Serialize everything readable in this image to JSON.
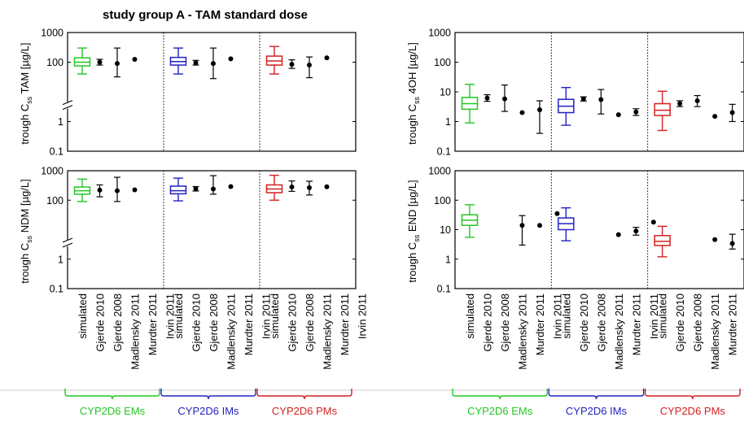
{
  "title": "study group A - TAM standard dose",
  "colors": {
    "EMs": "#22c722",
    "IMs": "#2222c0",
    "PMs": "#d42020",
    "observed": "#000000"
  },
  "x_categories": [
    "simulated",
    "Gjerde 2010",
    "Gjerde 2008",
    "Madlensky 2011",
    "Murdter 2011",
    "Irvin 2011"
  ],
  "groups": [
    "CYP2D6 EMs",
    "CYP2D6 IMs",
    "CYP2D6 PMs"
  ],
  "ytick_labels": [
    "0.1",
    "1",
    "100",
    "1000"
  ],
  "ytick_labels_full": [
    "0.1",
    "1",
    "10",
    "100",
    "1000"
  ],
  "chart_data": [
    {
      "type": "box",
      "panel": "TAM",
      "title": "study group A - TAM standard dose",
      "ylabel_parts": [
        "trough C",
        "ss",
        " TAM [µg/L]"
      ],
      "yscale": "log",
      "ylim": [
        0.1,
        1000
      ],
      "axis_break": true,
      "groups": [
        {
          "name": "CYP2D6 EMs",
          "simulated": {
            "min": 40,
            "q1": 75,
            "median": 100,
            "q3": 140,
            "max": 300
          },
          "observed": [
            {
              "label": "Gjerde 2010",
              "mean": 100,
              "lo": 80,
              "hi": 125
            },
            {
              "label": "Gjerde 2008",
              "mean": 90,
              "lo": 32,
              "hi": 300
            },
            {
              "label": "Madlensky 2011",
              "mean": 125
            }
          ]
        },
        {
          "name": "CYP2D6 IMs",
          "simulated": {
            "min": 40,
            "q1": 80,
            "median": 105,
            "q3": 145,
            "max": 300
          },
          "observed": [
            {
              "label": "Gjerde 2010",
              "mean": 95,
              "lo": 80,
              "hi": 115
            },
            {
              "label": "Gjerde 2008",
              "mean": 90,
              "lo": 28,
              "hi": 300
            },
            {
              "label": "Madlensky 2011",
              "mean": 130
            }
          ]
        },
        {
          "name": "CYP2D6 PMs",
          "simulated": {
            "min": 40,
            "q1": 80,
            "median": 110,
            "q3": 160,
            "max": 340
          },
          "observed": [
            {
              "label": "Gjerde 2010",
              "mean": 85,
              "lo": 62,
              "hi": 120
            },
            {
              "label": "Gjerde 2008",
              "mean": 80,
              "lo": 30,
              "hi": 150
            },
            {
              "label": "Madlensky 2011",
              "mean": 140
            }
          ]
        }
      ]
    },
    {
      "type": "box",
      "panel": "NDM",
      "ylabel_parts": [
        "trough C",
        "ss",
        " NDM [µg/L]"
      ],
      "yscale": "log",
      "ylim": [
        0.1,
        1000
      ],
      "axis_break": true,
      "groups": [
        {
          "name": "CYP2D6 EMs",
          "simulated": {
            "min": 90,
            "q1": 160,
            "median": 210,
            "q3": 280,
            "max": 520
          },
          "observed": [
            {
              "label": "Gjerde 2010",
              "mean": 220,
              "lo": 130,
              "hi": 330
            },
            {
              "label": "Gjerde 2008",
              "mean": 210,
              "lo": 90,
              "hi": 600
            },
            {
              "label": "Madlensky 2011",
              "mean": 225
            }
          ]
        },
        {
          "name": "CYP2D6 IMs",
          "simulated": {
            "min": 95,
            "q1": 165,
            "median": 210,
            "q3": 300,
            "max": 560
          },
          "observed": [
            {
              "label": "Gjerde 2010",
              "mean": 245,
              "lo": 205,
              "hi": 290
            },
            {
              "label": "Gjerde 2008",
              "mean": 240,
              "lo": 160,
              "hi": 680
            },
            {
              "label": "Madlensky 2011",
              "mean": 290
            }
          ]
        },
        {
          "name": "CYP2D6 PMs",
          "simulated": {
            "min": 100,
            "q1": 180,
            "median": 240,
            "q3": 330,
            "max": 700
          },
          "observed": [
            {
              "label": "Gjerde 2010",
              "mean": 280,
              "lo": 200,
              "hi": 450
            },
            {
              "label": "Gjerde 2008",
              "mean": 265,
              "lo": 150,
              "hi": 440
            },
            {
              "label": "Madlensky 2011",
              "mean": 285
            }
          ]
        }
      ]
    },
    {
      "type": "box",
      "panel": "4OH",
      "ylabel_parts": [
        "trough C",
        "ss",
        " 4OH [µg/L]"
      ],
      "yscale": "log",
      "ylim": [
        0.1,
        1000
      ],
      "groups": [
        {
          "name": "CYP2D6 EMs",
          "simulated": {
            "min": 0.9,
            "q1": 2.6,
            "median": 4.0,
            "q3": 6.5,
            "max": 18
          },
          "observed": [
            {
              "label": "Gjerde 2010",
              "mean": 6.2,
              "lo": 4.8,
              "hi": 8.0
            },
            {
              "label": "Gjerde 2008",
              "mean": 5.8,
              "lo": 2.2,
              "hi": 17
            },
            {
              "label": "Madlensky 2011",
              "mean": 2.0
            },
            {
              "label": "Murdter 2011",
              "mean": 2.5,
              "lo": 0.4,
              "hi": 5.0
            }
          ]
        },
        {
          "name": "CYP2D6 IMs",
          "simulated": {
            "min": 0.75,
            "q1": 2.0,
            "median": 3.3,
            "q3": 5.6,
            "max": 14
          },
          "observed": [
            {
              "label": "Gjerde 2010",
              "mean": 5.8,
              "lo": 4.9,
              "hi": 6.8
            },
            {
              "label": "Gjerde 2008",
              "mean": 5.5,
              "lo": 1.8,
              "hi": 12
            },
            {
              "label": "Madlensky 2011",
              "mean": 1.7
            },
            {
              "label": "Murdter 2011",
              "mean": 2.1,
              "lo": 1.6,
              "hi": 2.7
            }
          ]
        },
        {
          "name": "CYP2D6 PMs",
          "simulated": {
            "min": 0.5,
            "q1": 1.6,
            "median": 2.4,
            "q3": 4.0,
            "max": 10.5
          },
          "observed": [
            {
              "label": "Gjerde 2010",
              "mean": 4.0,
              "lo": 3.2,
              "hi": 5.0
            },
            {
              "label": "Gjerde 2008",
              "mean": 5.0,
              "lo": 3.2,
              "hi": 7.5
            },
            {
              "label": "Madlensky 2011",
              "mean": 1.5
            },
            {
              "label": "Murdter 2011",
              "mean": 2.0,
              "lo": 1.0,
              "hi": 3.8
            }
          ]
        }
      ]
    },
    {
      "type": "box",
      "panel": "END",
      "ylabel_parts": [
        "trough C",
        "ss",
        " END [µg/L]"
      ],
      "yscale": "log",
      "ylim": [
        0.1,
        1000
      ],
      "groups": [
        {
          "name": "CYP2D6 EMs",
          "simulated": {
            "min": 5.5,
            "q1": 14,
            "median": 21,
            "q3": 32,
            "max": 70
          },
          "observed": [
            {
              "label": "Madlensky 2011",
              "mean": 14,
              "lo": 3,
              "hi": 30
            },
            {
              "label": "Murdter 2011",
              "mean": 14
            },
            {
              "label": "Irvin 2011",
              "mean": 35
            }
          ]
        },
        {
          "name": "CYP2D6 IMs",
          "simulated": {
            "min": 4.2,
            "q1": 10,
            "median": 16,
            "q3": 25,
            "max": 55
          },
          "observed": [
            {
              "label": "Madlensky 2011",
              "mean": 6.8
            },
            {
              "label": "Murdter 2011",
              "mean": 9.0,
              "lo": 6.5,
              "hi": 12
            },
            {
              "label": "Irvin 2011",
              "mean": 18
            }
          ]
        },
        {
          "name": "CYP2D6 PMs",
          "simulated": {
            "min": 1.2,
            "q1": 2.9,
            "median": 4.0,
            "q3": 6.3,
            "max": 13
          },
          "observed": [
            {
              "label": "Madlensky 2011",
              "mean": 4.6
            },
            {
              "label": "Murdter 2011",
              "mean": 3.4,
              "lo": 2.2,
              "hi": 7.0
            },
            {
              "label": "Irvin 2011",
              "mean": 4.2
            }
          ]
        }
      ]
    }
  ]
}
